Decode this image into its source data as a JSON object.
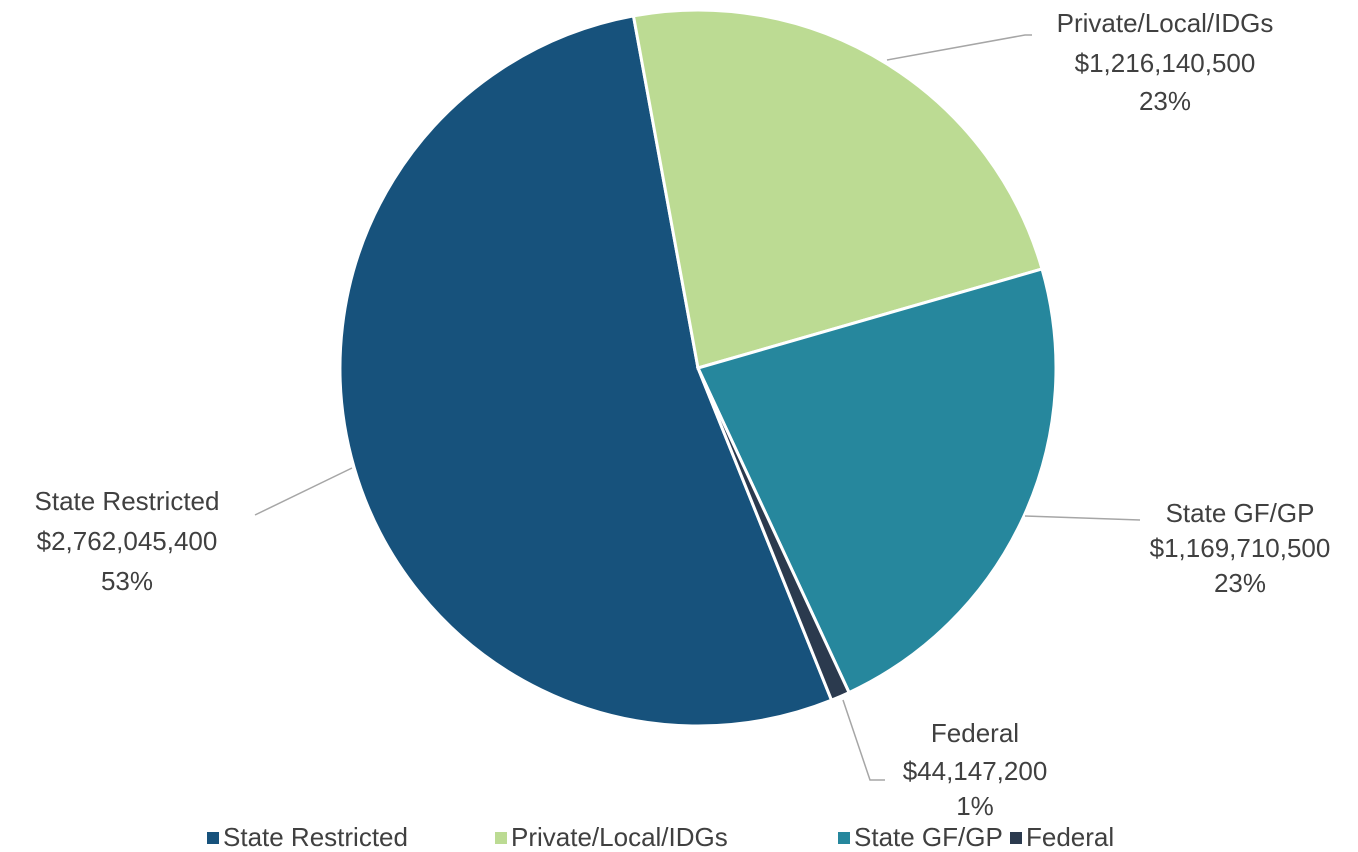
{
  "chart_data": {
    "type": "pie",
    "categories": [
      "State Restricted",
      "Private/Local/IDGs",
      "State GF/GP",
      "Federal"
    ],
    "values": [
      2762045400,
      1216140500,
      1169710500,
      44147200
    ],
    "value_labels": [
      "$2,762,045,400",
      "$1,216,140,500",
      "$1,169,710,500",
      "$44,147,200"
    ],
    "percent_labels": [
      "53%",
      "23%",
      "23%",
      "1%"
    ],
    "colors": [
      "#17527c",
      "#bcdb93",
      "#26879d",
      "#2b3a4e"
    ],
    "legend": "bottom"
  }
}
